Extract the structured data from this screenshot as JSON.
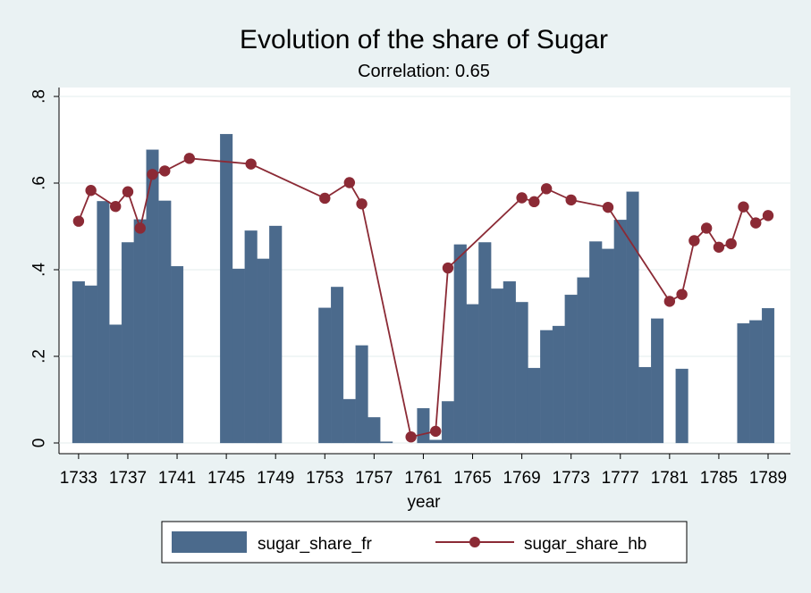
{
  "chart_data": {
    "type": "bar",
    "title": "Evolution of the share of Sugar",
    "subtitle": "Correlation: 0.65",
    "xlabel": "year",
    "ylabel": "",
    "xlim": [
      1732,
      1790
    ],
    "ylim": [
      0,
      0.8
    ],
    "x_ticks": [
      1733,
      1737,
      1741,
      1745,
      1749,
      1753,
      1757,
      1761,
      1765,
      1769,
      1773,
      1777,
      1781,
      1785,
      1789
    ],
    "y_ticks": [
      {
        "value": 0,
        "label": "0"
      },
      {
        "value": 0.2,
        "label": ".2"
      },
      {
        "value": 0.4,
        "label": ".4"
      },
      {
        "value": 0.6,
        "label": ".6"
      },
      {
        "value": 0.8,
        "label": ".8"
      }
    ],
    "grid": true,
    "legend_position": "bottom",
    "series": [
      {
        "name": "sugar_share_fr",
        "type": "bar",
        "color": "#4b6a8c",
        "points": [
          [
            1733,
            0.373
          ],
          [
            1734,
            0.363
          ],
          [
            1735,
            0.558
          ],
          [
            1736,
            0.273
          ],
          [
            1737,
            0.463
          ],
          [
            1738,
            0.516
          ],
          [
            1739,
            0.677
          ],
          [
            1740,
            0.559
          ],
          [
            1741,
            0.408
          ],
          [
            1745,
            0.713
          ],
          [
            1746,
            0.402
          ],
          [
            1747,
            0.49
          ],
          [
            1748,
            0.425
          ],
          [
            1749,
            0.501
          ],
          [
            1753,
            0.312
          ],
          [
            1754,
            0.36
          ],
          [
            1755,
            0.101
          ],
          [
            1756,
            0.225
          ],
          [
            1757,
            0.059
          ],
          [
            1758,
            0.003
          ],
          [
            1761,
            0.08
          ],
          [
            1762,
            0.007
          ],
          [
            1763,
            0.096
          ],
          [
            1764,
            0.458
          ],
          [
            1765,
            0.32
          ],
          [
            1766,
            0.463
          ],
          [
            1767,
            0.356
          ],
          [
            1768,
            0.373
          ],
          [
            1769,
            0.325
          ],
          [
            1770,
            0.173
          ],
          [
            1771,
            0.26
          ],
          [
            1772,
            0.27
          ],
          [
            1773,
            0.342
          ],
          [
            1774,
            0.382
          ],
          [
            1775,
            0.465
          ],
          [
            1776,
            0.448
          ],
          [
            1777,
            0.515
          ],
          [
            1778,
            0.58
          ],
          [
            1779,
            0.175
          ],
          [
            1780,
            0.287
          ],
          [
            1782,
            0.171
          ],
          [
            1787,
            0.276
          ],
          [
            1788,
            0.283
          ],
          [
            1789,
            0.311
          ]
        ]
      },
      {
        "name": "sugar_share_hb",
        "type": "line",
        "color": "#8b2a35",
        "points": [
          [
            1733,
            0.512
          ],
          [
            1734,
            0.583
          ],
          [
            1736,
            0.546
          ],
          [
            1737,
            0.58
          ],
          [
            1738,
            0.496
          ],
          [
            1739,
            0.62
          ],
          [
            1740,
            0.628
          ],
          [
            1742,
            0.657
          ],
          [
            1747,
            0.644
          ],
          [
            1753,
            0.565
          ],
          [
            1755,
            0.601
          ],
          [
            1756,
            0.552
          ],
          [
            1760,
            0.014
          ],
          [
            1762,
            0.027
          ],
          [
            1763,
            0.404
          ],
          [
            1769,
            0.566
          ],
          [
            1770,
            0.557
          ],
          [
            1771,
            0.587
          ],
          [
            1773,
            0.561
          ],
          [
            1776,
            0.544
          ],
          [
            1781,
            0.327
          ],
          [
            1782,
            0.343
          ],
          [
            1783,
            0.467
          ],
          [
            1784,
            0.496
          ],
          [
            1785,
            0.452
          ],
          [
            1786,
            0.46
          ],
          [
            1787,
            0.545
          ],
          [
            1788,
            0.508
          ],
          [
            1789,
            0.525
          ]
        ]
      }
    ]
  }
}
